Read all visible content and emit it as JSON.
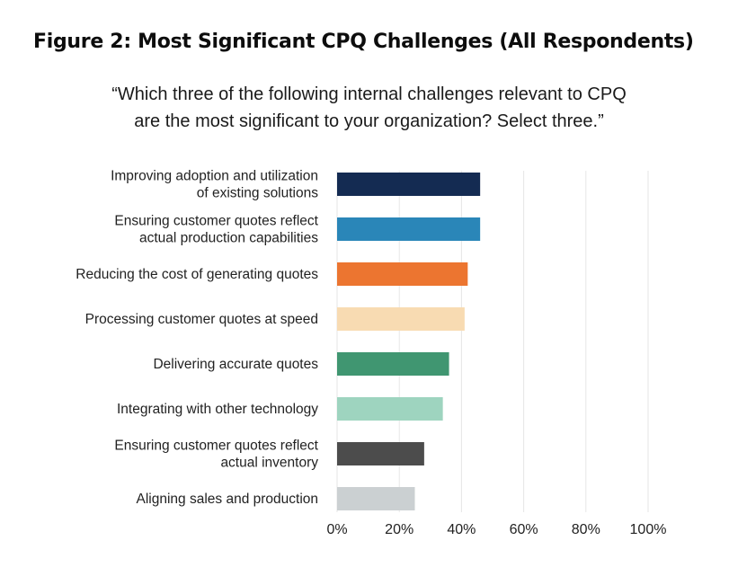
{
  "figure": {
    "title": "Figure 2: Most Significant CPQ Challenges (All Respondents)",
    "subtitle_line1": "“Which three of the following internal challenges relevant to CPQ",
    "subtitle_line2": "are the most significant to your organization? Select three.”"
  },
  "chart_data": {
    "type": "bar",
    "orientation": "horizontal",
    "categories": [
      [
        "Improving adoption and utilization",
        "of existing solutions"
      ],
      [
        "Ensuring customer quotes reflect",
        "actual production capabilities"
      ],
      [
        "Reducing the cost of generating quotes"
      ],
      [
        "Processing customer quotes at speed"
      ],
      [
        "Delivering accurate quotes"
      ],
      [
        "Integrating with other technology"
      ],
      [
        "Ensuring customer quotes reflect",
        "actual inventory"
      ],
      [
        "Aligning sales and production"
      ]
    ],
    "values": [
      46,
      46,
      42,
      41,
      36,
      34,
      28,
      25
    ],
    "colors": [
      "#142b52",
      "#2a86b8",
      "#ec7530",
      "#f8dbb2",
      "#409671",
      "#9ed4bf",
      "#4c4c4c",
      "#cbd0d2"
    ],
    "xlim": [
      0,
      100
    ],
    "xticks": [
      "0%",
      "20%",
      "40%",
      "60%",
      "80%",
      "100%"
    ],
    "xtick_values": [
      0,
      20,
      40,
      60,
      80,
      100
    ],
    "grid": "vertical",
    "gridline_color": "#e6e6e6",
    "legend": "none"
  }
}
